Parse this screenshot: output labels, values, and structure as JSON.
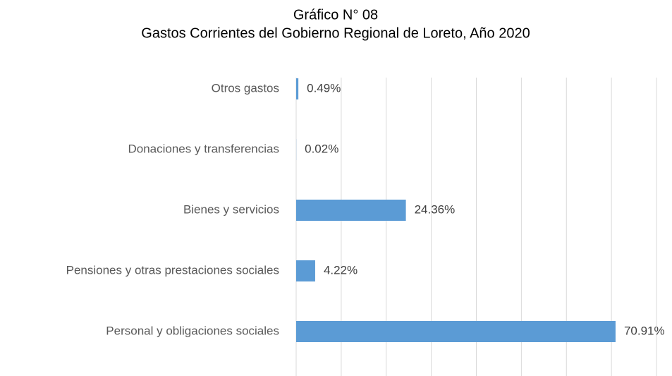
{
  "chart_data": {
    "type": "hbar",
    "title": "Gráfico N° 08",
    "subtitle": "Gastos Corrientes del Gobierno Regional de Loreto, Año 2020",
    "categories": [
      "Otros gastos",
      "Donaciones y transferencias",
      "Bienes y servicios",
      "Pensiones y otras prestaciones sociales",
      "Personal y obligaciones sociales"
    ],
    "values": [
      0.49,
      0.02,
      24.36,
      4.22,
      70.91
    ],
    "value_labels": [
      "0.49%",
      "0.02%",
      "24.36%",
      "4.22%",
      "70.91%"
    ],
    "color": "#5b9bd5",
    "xlim": [
      0,
      80
    ],
    "xticks": [
      0,
      10,
      20,
      30,
      40,
      50,
      60,
      70,
      80
    ],
    "grid": true
  }
}
